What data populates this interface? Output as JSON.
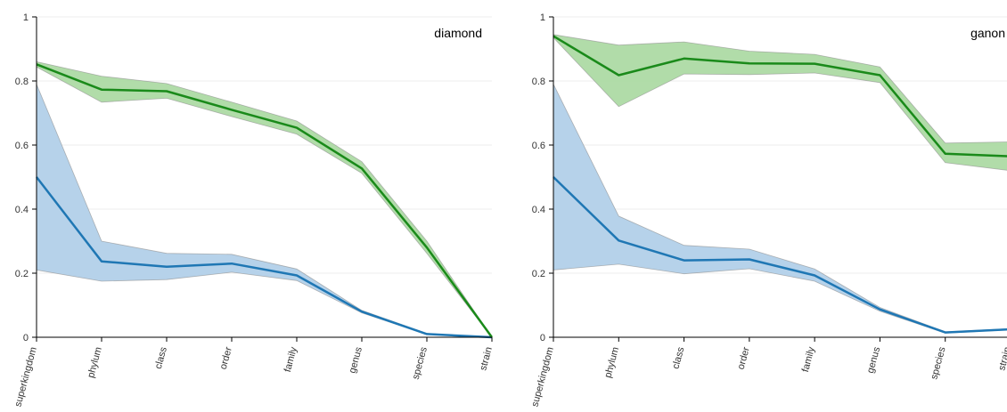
{
  "chart_data": [
    {
      "type": "line",
      "title": "diamond",
      "categories": [
        "superkingdom",
        "phylum",
        "class",
        "order",
        "family",
        "genus",
        "species",
        "strain"
      ],
      "yticks": [
        "0",
        "0.2",
        "0.4",
        "0.6",
        "0.8",
        "1"
      ],
      "ylim": [
        0,
        1
      ],
      "grid": true,
      "series": [
        {
          "color": "#1f77b4",
          "fill": "#aecde8",
          "values": [
            0.5,
            0.237,
            0.22,
            0.23,
            0.193,
            0.08,
            0.01,
            0.0
          ],
          "upper": [
            0.79,
            0.3,
            0.262,
            0.259,
            0.213,
            0.084,
            0.012,
            0.0
          ],
          "lower": [
            0.21,
            0.175,
            0.18,
            0.203,
            0.177,
            0.076,
            0.009,
            0.0
          ]
        },
        {
          "color": "#1a8a1a",
          "fill": "#a8d8a0",
          "values": [
            0.852,
            0.773,
            0.768,
            0.71,
            0.654,
            0.527,
            0.28,
            0.0
          ],
          "upper": [
            0.86,
            0.815,
            0.792,
            0.734,
            0.675,
            0.548,
            0.3,
            0.0
          ],
          "lower": [
            0.844,
            0.734,
            0.746,
            0.689,
            0.634,
            0.512,
            0.262,
            0.0
          ]
        }
      ]
    },
    {
      "type": "line",
      "title": "ganon",
      "categories": [
        "superkingdom",
        "phylum",
        "class",
        "order",
        "family",
        "genus",
        "species",
        "strain"
      ],
      "yticks": [
        "0",
        "0.2",
        "0.4",
        "0.6",
        "0.8",
        "1"
      ],
      "ylim": [
        0,
        1
      ],
      "grid": true,
      "series": [
        {
          "color": "#1f77b4",
          "fill": "#aecde8",
          "values": [
            0.5,
            0.302,
            0.24,
            0.243,
            0.193,
            0.087,
            0.015,
            0.025
          ],
          "upper": [
            0.79,
            0.378,
            0.287,
            0.275,
            0.213,
            0.093,
            0.017,
            0.027
          ],
          "lower": [
            0.21,
            0.228,
            0.198,
            0.214,
            0.175,
            0.081,
            0.013,
            0.023
          ]
        },
        {
          "color": "#1a8a1a",
          "fill": "#a8d8a0",
          "values": [
            0.94,
            0.818,
            0.87,
            0.855,
            0.854,
            0.818,
            0.573,
            0.565
          ],
          "upper": [
            0.945,
            0.912,
            0.922,
            0.893,
            0.883,
            0.844,
            0.606,
            0.61
          ],
          "lower": [
            0.935,
            0.72,
            0.822,
            0.82,
            0.825,
            0.795,
            0.545,
            0.52
          ]
        }
      ]
    }
  ]
}
